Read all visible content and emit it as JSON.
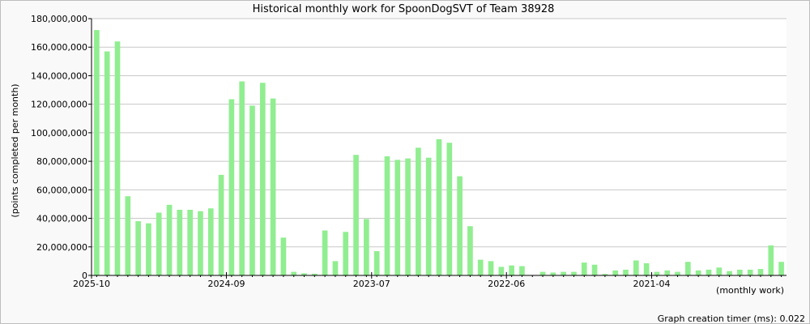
{
  "chart_data": {
    "type": "bar",
    "title": "Historical monthly work for SpoonDogSVT of Team 38928",
    "ylabel": "(points completed per month)",
    "xlabel": "(monthly work)",
    "footer": "Graph creation timer (ms): 0.022",
    "ylim": [
      0,
      180000000
    ],
    "yticks": [
      "0",
      "20,000,000",
      "40,000,000",
      "60,000,000",
      "80,000,000",
      "100,000,000",
      "120,000,000",
      "140,000,000",
      "160,000,000",
      "180,000,000"
    ],
    "xtick_labels": [
      {
        "label": "2025-10",
        "index": 0
      },
      {
        "label": "2024-09",
        "index": 13
      },
      {
        "label": "2023-07",
        "index": 27
      },
      {
        "label": "2022-06",
        "index": 40
      },
      {
        "label": "2021-04",
        "index": 54
      }
    ],
    "bar_color": "#90ee90",
    "grid": true,
    "values": [
      172000000,
      157000000,
      164000000,
      55500000,
      38000000,
      36500000,
      44000000,
      49500000,
      46000000,
      46000000,
      45000000,
      47000000,
      70500000,
      123500000,
      136000000,
      119000000,
      135000000,
      124000000,
      26500000,
      2500000,
      1500000,
      1200000,
      31500000,
      10000000,
      30500000,
      84500000,
      39500000,
      17000000,
      83500000,
      81000000,
      82000000,
      89500000,
      82500000,
      95500000,
      93000000,
      69500000,
      34500000,
      11000000,
      10000000,
      6000000,
      7000000,
      6500000,
      0,
      2500000,
      2000000,
      2500000,
      2500000,
      9000000,
      7500000,
      1000000,
      3500000,
      4000000,
      10500000,
      8500000,
      2500000,
      3500000,
      2500000,
      9500000,
      3500000,
      4000000,
      5500000,
      3000000,
      4000000,
      4000000,
      4500000,
      21000000,
      9500000
    ]
  }
}
